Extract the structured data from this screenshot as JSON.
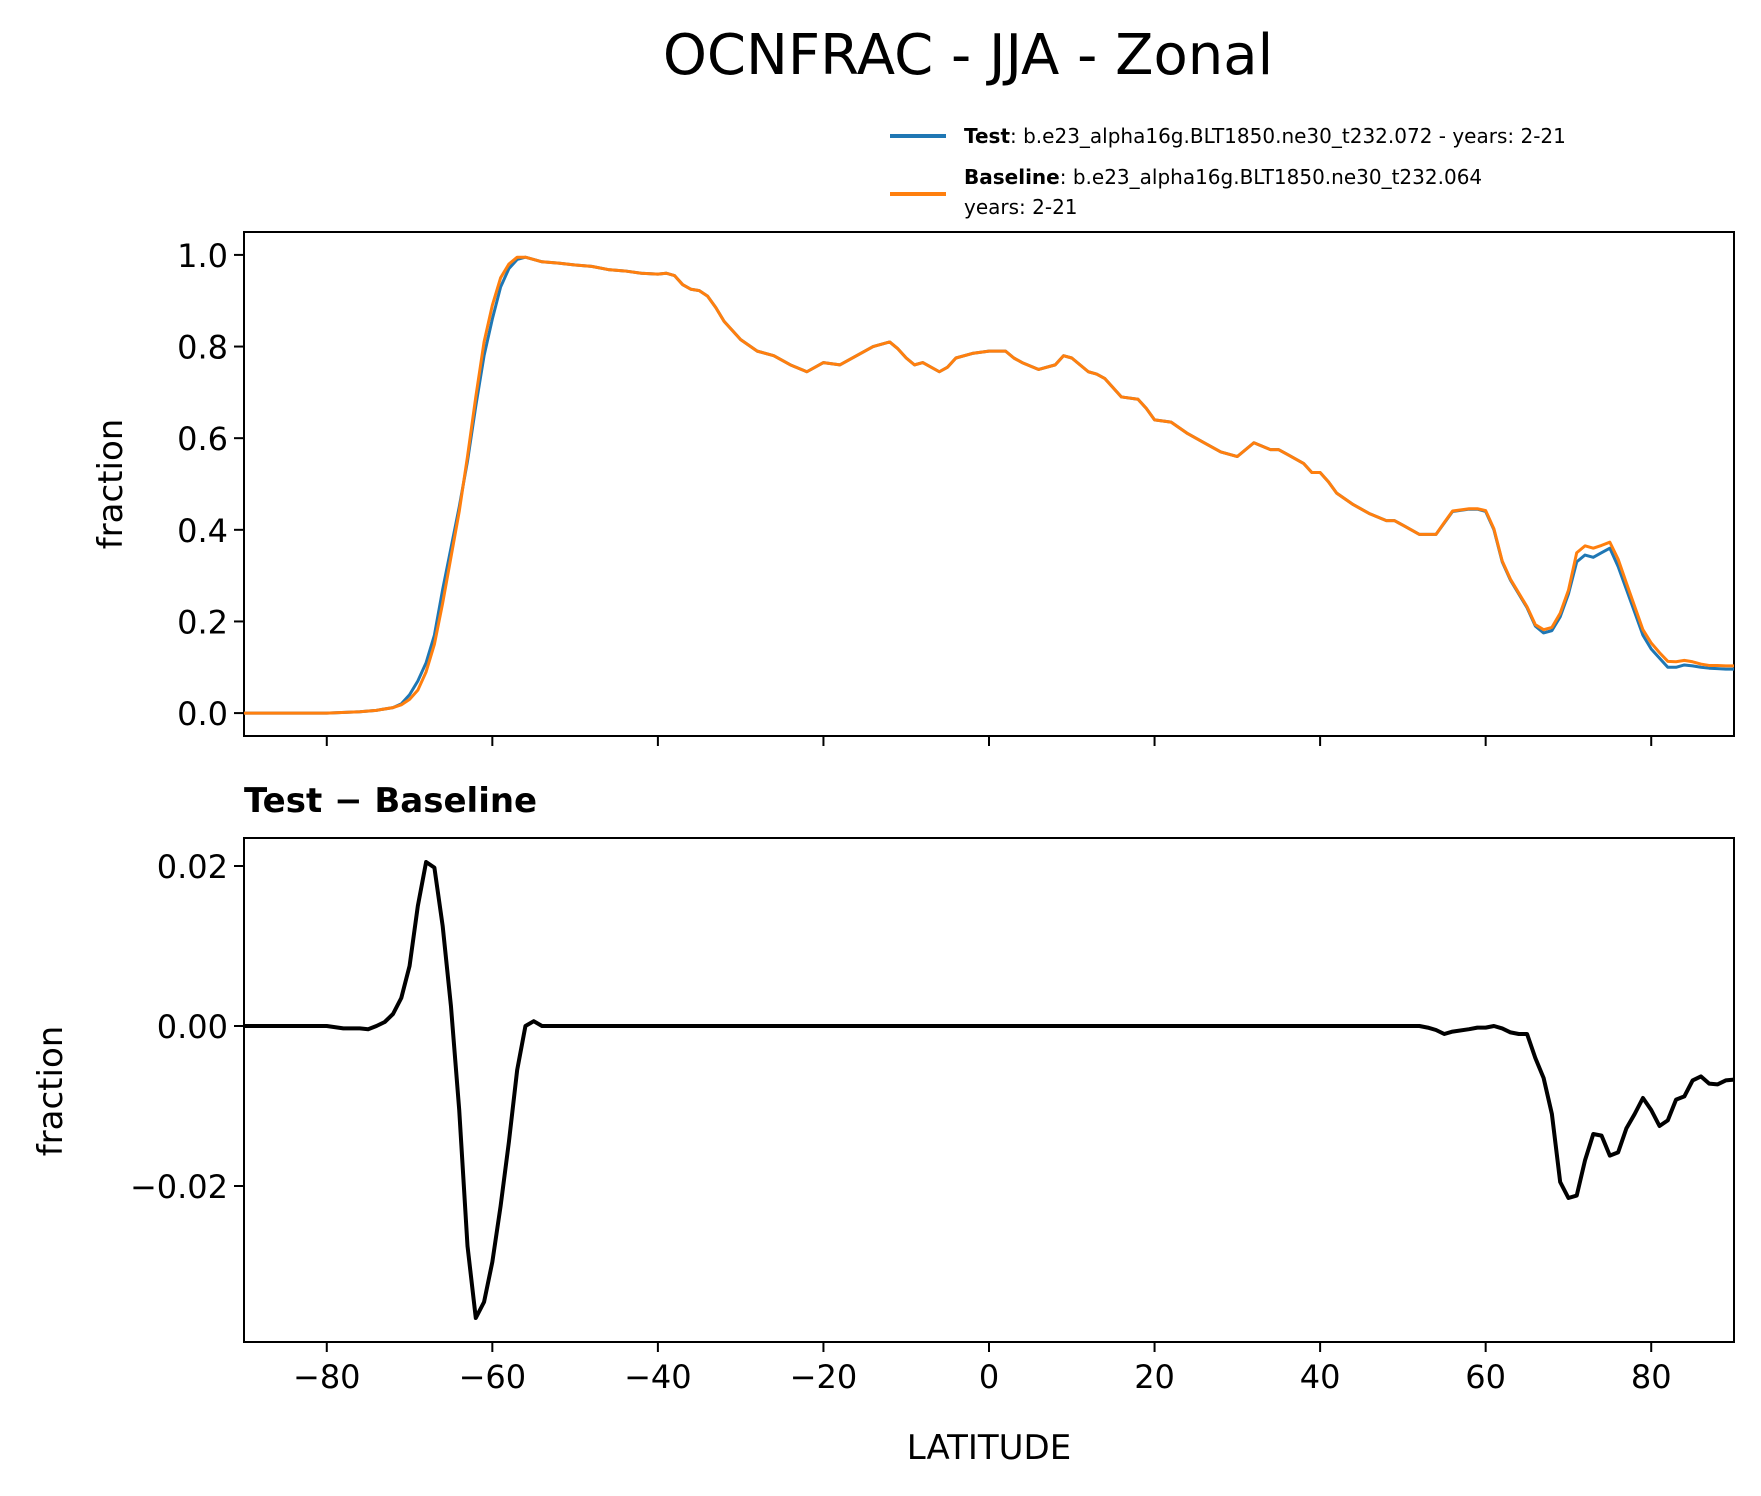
{
  "figure": {
    "title": "OCNFRAC - JJA - Zonal",
    "colors": {
      "test": "#1f77b4",
      "baseline": "#ff7f0e",
      "diff": "#000000"
    }
  },
  "legend": {
    "test_bold": "Test",
    "test_text": ": b.e23_alpha16g.BLT1850.ne30_t232.072 - years: 2-21",
    "baseline_bold": "Baseline",
    "baseline_text_line1": ": b.e23_alpha16g.BLT1850.ne30_t232.064",
    "baseline_text_line2": "years: 2-21"
  },
  "chart_data": [
    {
      "type": "line",
      "panel": "top",
      "xlabel": "",
      "ylabel": "fraction",
      "xlim": [
        -90,
        90
      ],
      "ylim": [
        -0.05,
        1.05
      ],
      "xticks": [
        -80,
        -60,
        -40,
        -20,
        0,
        20,
        40,
        60,
        80
      ],
      "yticks": [
        0.0,
        0.2,
        0.4,
        0.6,
        0.8,
        1.0
      ],
      "ytick_labels": [
        "0.0",
        "0.2",
        "0.4",
        "0.6",
        "0.8",
        "1.0"
      ],
      "legend_position": "above-right",
      "series": [
        {
          "name": "Test",
          "color": "#1f77b4",
          "x": [
            -90,
            -80,
            -76,
            -74,
            -72,
            -71,
            -70,
            -69,
            -68,
            -67,
            -66,
            -65,
            -64,
            -63,
            -62,
            -61,
            -60,
            -59,
            -58,
            -57,
            -56,
            -54,
            -52,
            -50,
            -48,
            -46,
            -44,
            -42,
            -40,
            -39,
            -38,
            -37,
            -36,
            -35,
            -34,
            -33,
            -32,
            -31,
            -30,
            -28,
            -26,
            -24,
            -22,
            -20,
            -18,
            -16,
            -14,
            -12,
            -11,
            -10,
            -9,
            -8,
            -6,
            -5,
            -4,
            -2,
            0,
            2,
            3,
            4,
            6,
            8,
            9,
            10,
            11,
            12,
            13,
            14,
            16,
            18,
            19,
            20,
            22,
            24,
            26,
            28,
            30,
            32,
            34,
            35,
            36,
            37,
            38,
            39,
            40,
            41,
            42,
            44,
            46,
            48,
            49,
            50,
            52,
            54,
            55,
            56,
            58,
            59,
            60,
            61,
            62,
            63,
            64,
            65,
            66,
            67,
            68,
            69,
            70,
            71,
            72,
            73,
            74,
            75,
            76,
            77,
            78,
            79,
            80,
            81,
            82,
            83,
            84,
            85,
            86,
            87,
            88,
            89,
            90
          ],
          "values": [
            0.0,
            0.0,
            0.003,
            0.006,
            0.012,
            0.02,
            0.04,
            0.07,
            0.11,
            0.17,
            0.27,
            0.36,
            0.45,
            0.55,
            0.67,
            0.78,
            0.86,
            0.93,
            0.97,
            0.99,
            0.995,
            0.985,
            0.982,
            0.978,
            0.975,
            0.968,
            0.965,
            0.96,
            0.958,
            0.96,
            0.955,
            0.935,
            0.925,
            0.922,
            0.91,
            0.885,
            0.855,
            0.835,
            0.815,
            0.79,
            0.78,
            0.76,
            0.745,
            0.765,
            0.76,
            0.78,
            0.8,
            0.81,
            0.795,
            0.775,
            0.76,
            0.765,
            0.745,
            0.755,
            0.775,
            0.785,
            0.79,
            0.79,
            0.775,
            0.765,
            0.75,
            0.76,
            0.78,
            0.775,
            0.76,
            0.745,
            0.74,
            0.73,
            0.69,
            0.685,
            0.665,
            0.64,
            0.635,
            0.61,
            0.59,
            0.57,
            0.56,
            0.59,
            0.575,
            0.575,
            0.565,
            0.555,
            0.545,
            0.525,
            0.525,
            0.505,
            0.48,
            0.455,
            0.435,
            0.42,
            0.42,
            0.41,
            0.39,
            0.39,
            0.415,
            0.44,
            0.445,
            0.445,
            0.44,
            0.4,
            0.33,
            0.29,
            0.26,
            0.23,
            0.19,
            0.175,
            0.18,
            0.21,
            0.26,
            0.33,
            0.345,
            0.34,
            0.35,
            0.36,
            0.32,
            0.27,
            0.22,
            0.17,
            0.14,
            0.12,
            0.1,
            0.1,
            0.105,
            0.103,
            0.1,
            0.098,
            0.097,
            0.096,
            0.096
          ]
        },
        {
          "name": "Baseline",
          "color": "#ff7f0e",
          "x": [
            -90,
            -80,
            -76,
            -74,
            -72,
            -71,
            -70,
            -69,
            -68,
            -67,
            -66,
            -65,
            -64,
            -63,
            -62,
            -61,
            -60,
            -59,
            -58,
            -57,
            -56,
            -54,
            -52,
            -50,
            -48,
            -46,
            -44,
            -42,
            -40,
            -39,
            -38,
            -37,
            -36,
            -35,
            -34,
            -33,
            -32,
            -31,
            -30,
            -28,
            -26,
            -24,
            -22,
            -20,
            -18,
            -16,
            -14,
            -12,
            -11,
            -10,
            -9,
            -8,
            -6,
            -5,
            -4,
            -2,
            0,
            2,
            3,
            4,
            6,
            8,
            9,
            10,
            11,
            12,
            13,
            14,
            16,
            18,
            19,
            20,
            22,
            24,
            26,
            28,
            30,
            32,
            34,
            35,
            36,
            37,
            38,
            39,
            40,
            41,
            42,
            44,
            46,
            48,
            49,
            50,
            52,
            54,
            55,
            56,
            58,
            59,
            60,
            61,
            62,
            63,
            64,
            65,
            66,
            67,
            68,
            69,
            70,
            71,
            72,
            73,
            74,
            75,
            76,
            77,
            78,
            79,
            80,
            81,
            82,
            83,
            84,
            85,
            86,
            87,
            88,
            89,
            90
          ],
          "values": [
            0.0,
            0.0,
            0.003,
            0.006,
            0.012,
            0.018,
            0.03,
            0.05,
            0.09,
            0.15,
            0.24,
            0.34,
            0.44,
            0.56,
            0.69,
            0.81,
            0.89,
            0.95,
            0.98,
            0.995,
            0.995,
            0.985,
            0.982,
            0.978,
            0.975,
            0.968,
            0.965,
            0.96,
            0.958,
            0.96,
            0.955,
            0.935,
            0.925,
            0.922,
            0.91,
            0.885,
            0.855,
            0.835,
            0.815,
            0.79,
            0.78,
            0.76,
            0.745,
            0.765,
            0.76,
            0.78,
            0.8,
            0.81,
            0.795,
            0.775,
            0.76,
            0.765,
            0.745,
            0.755,
            0.775,
            0.785,
            0.79,
            0.79,
            0.775,
            0.765,
            0.75,
            0.76,
            0.78,
            0.775,
            0.76,
            0.745,
            0.74,
            0.73,
            0.69,
            0.685,
            0.665,
            0.64,
            0.635,
            0.61,
            0.59,
            0.57,
            0.56,
            0.59,
            0.575,
            0.575,
            0.565,
            0.555,
            0.545,
            0.525,
            0.525,
            0.505,
            0.48,
            0.455,
            0.435,
            0.42,
            0.42,
            0.41,
            0.39,
            0.39,
            0.416,
            0.441,
            0.446,
            0.446,
            0.442,
            0.402,
            0.332,
            0.292,
            0.262,
            0.232,
            0.193,
            0.182,
            0.187,
            0.218,
            0.268,
            0.35,
            0.365,
            0.36,
            0.366,
            0.373,
            0.336,
            0.284,
            0.233,
            0.182,
            0.153,
            0.132,
            0.113,
            0.112,
            0.115,
            0.112,
            0.107,
            0.104,
            0.104,
            0.103,
            0.103
          ]
        }
      ]
    },
    {
      "type": "line",
      "panel": "bottom",
      "title": "Test − Baseline",
      "xlabel": "LATITUDE",
      "ylabel": "fraction",
      "xlim": [
        -90,
        90
      ],
      "ylim": [
        -0.0395,
        0.0235
      ],
      "xticks": [
        -80,
        -60,
        -40,
        -20,
        0,
        20,
        40,
        60,
        80
      ],
      "xtick_labels": [
        "−80",
        "−60",
        "−40",
        "−20",
        "0",
        "20",
        "40",
        "60",
        "80"
      ],
      "yticks": [
        -0.02,
        0.0,
        0.02
      ],
      "ytick_labels": [
        "−0.02",
        "0.00",
        "0.02"
      ],
      "series": [
        {
          "color": "#000000",
          "x": [
            -90,
            -80,
            -78,
            -76,
            -75,
            -74,
            -73,
            -72,
            -71,
            -70,
            -69,
            -68,
            -67,
            -66,
            -65,
            -64,
            -63,
            -62,
            -61,
            -60,
            -59,
            -58,
            -57,
            -56,
            -55,
            -54,
            -50,
            -40,
            -20,
            0,
            20,
            40,
            50,
            52,
            53,
            54,
            55,
            56,
            58,
            59,
            60,
            61,
            62,
            63,
            64,
            65,
            66,
            67,
            68,
            69,
            70,
            71,
            72,
            73,
            74,
            75,
            76,
            77,
            78,
            79,
            80,
            81,
            82,
            83,
            84,
            85,
            86,
            87,
            88,
            89,
            90
          ],
          "values": [
            0.0,
            0.0,
            -0.0003,
            -0.0003,
            -0.0004,
            0.0,
            0.0005,
            0.0015,
            0.0035,
            0.0075,
            0.015,
            0.0205,
            0.0198,
            0.0125,
            0.0025,
            -0.0105,
            -0.0275,
            -0.0365,
            -0.0345,
            -0.0295,
            -0.0225,
            -0.0145,
            -0.0055,
            0.0,
            0.0006,
            0.0,
            0.0,
            0.0,
            0.0,
            0.0,
            0.0,
            0.0,
            0.0,
            0.0,
            -0.0002,
            -0.0005,
            -0.001,
            -0.0007,
            -0.0004,
            -0.0002,
            -0.0002,
            0.0,
            -0.0003,
            -0.0008,
            -0.001,
            -0.001,
            -0.004,
            -0.0065,
            -0.011,
            -0.0195,
            -0.0215,
            -0.0212,
            -0.0168,
            -0.0135,
            -0.0137,
            -0.0162,
            -0.0158,
            -0.0128,
            -0.011,
            -0.009,
            -0.0105,
            -0.0125,
            -0.0118,
            -0.0092,
            -0.0088,
            -0.0068,
            -0.0063,
            -0.0072,
            -0.0073,
            -0.0068,
            -0.0067
          ]
        }
      ]
    }
  ]
}
